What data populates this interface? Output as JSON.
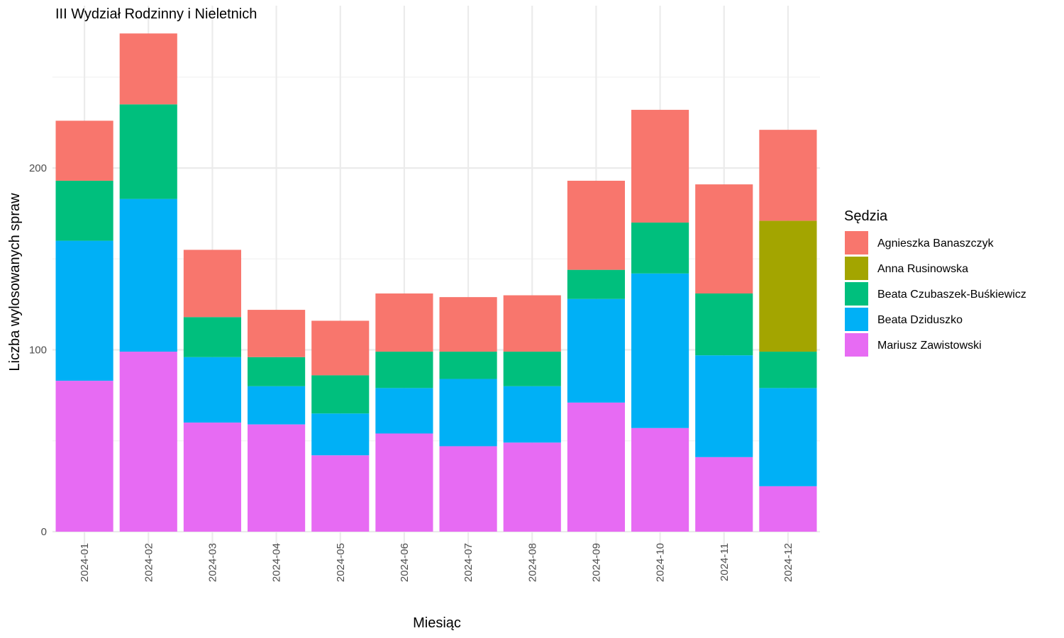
{
  "chart_data": {
    "type": "bar",
    "stacked": true,
    "title": "III Wydział Rodzinny i Nieletnich",
    "xlabel": "Miesiąc",
    "ylabel": "Liczba wylosowanych spraw",
    "ylim": [
      0,
      275
    ],
    "yticks": [
      0,
      100,
      200
    ],
    "grid": true,
    "categories": [
      "2024-01",
      "2024-02",
      "2024-03",
      "2024-04",
      "2024-05",
      "2024-06",
      "2024-07",
      "2024-08",
      "2024-09",
      "2024-10",
      "2024-11",
      "2024-12"
    ],
    "legend": {
      "title": "Sędzia",
      "position": "right"
    },
    "series": [
      {
        "name": "Mariusz Zawistowski",
        "color": "#E76BF3",
        "values": [
          83,
          99,
          60,
          59,
          42,
          54,
          47,
          49,
          71,
          57,
          41,
          25
        ]
      },
      {
        "name": "Beata Dziduszko",
        "color": "#00B0F6",
        "values": [
          77,
          84,
          36,
          21,
          23,
          25,
          37,
          31,
          57,
          85,
          56,
          54
        ]
      },
      {
        "name": "Beata Czubaszek-Buśkiewicz",
        "color": "#00BF7D",
        "values": [
          33,
          52,
          22,
          16,
          21,
          20,
          15,
          19,
          16,
          28,
          34,
          20
        ]
      },
      {
        "name": "Anna Rusinowska",
        "color": "#A3A500",
        "values": [
          0,
          0,
          0,
          0,
          0,
          0,
          0,
          0,
          0,
          0,
          0,
          72
        ]
      },
      {
        "name": "Agnieszka Banaszczyk",
        "color": "#F8766D",
        "values": [
          33,
          39,
          37,
          26,
          30,
          32,
          30,
          31,
          49,
          62,
          60,
          50
        ]
      }
    ],
    "legend_order": [
      "Agnieszka Banaszczyk",
      "Anna Rusinowska",
      "Beata Czubaszek-Buśkiewicz",
      "Beata Dziduszko",
      "Mariusz Zawistowski"
    ]
  }
}
